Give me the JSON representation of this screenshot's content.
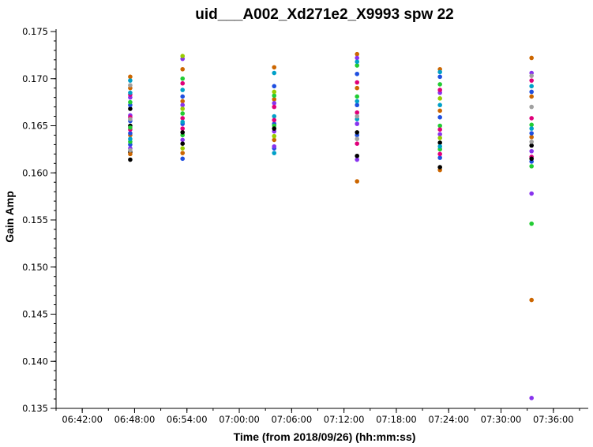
{
  "chart_data": {
    "type": "scatter",
    "title": "uid___A002_Xd271e2_X9993 spw 22",
    "xlabel": "Time (from 2018/09/26) (hh:mm:ss)",
    "ylabel": "Gain Amp",
    "xlim": [
      "06:39:00",
      "07:40:00"
    ],
    "ylim": [
      0.135,
      0.175
    ],
    "x_ticks": [
      "06:42:00",
      "06:48:00",
      "06:54:00",
      "07:00:00",
      "07:06:00",
      "07:12:00",
      "07:18:00",
      "07:24:00",
      "07:30:00",
      "07:36:00"
    ],
    "y_ticks": [
      "0.135",
      "0.140",
      "0.145",
      "0.150",
      "0.155",
      "0.160",
      "0.165",
      "0.170",
      "0.175"
    ],
    "grid": false,
    "series": [
      {
        "x": "06:47:30",
        "color": "#000000",
        "values": [
          0.1614,
          0.1622,
          0.165,
          0.1668
        ]
      },
      {
        "x": "06:47:30",
        "color": "#cc6600",
        "values": [
          0.1702,
          0.169,
          0.164,
          0.162
        ]
      },
      {
        "x": "06:47:30",
        "color": "#1f4fe0",
        "values": [
          0.1672,
          0.1655,
          0.1642,
          0.163
        ]
      },
      {
        "x": "06:47:30",
        "color": "#8833ee",
        "values": [
          0.168,
          0.1661,
          0.1626
        ]
      },
      {
        "x": "06:47:30",
        "color": "#e0007a",
        "values": [
          0.1683,
          0.1659,
          0.1646
        ]
      },
      {
        "x": "06:47:30",
        "color": "#22cc33",
        "values": [
          0.1675,
          0.1648,
          0.1633
        ]
      },
      {
        "x": "06:47:30",
        "color": "#00a0c8",
        "values": [
          0.1698,
          0.1685,
          0.1636
        ]
      },
      {
        "x": "06:47:30",
        "color": "#a0a0a0",
        "values": [
          0.1693,
          0.1657,
          0.1624
        ]
      },
      {
        "x": "06:53:30",
        "color": "#1f4fe0",
        "values": [
          0.1615,
          0.1652,
          0.1681
        ]
      },
      {
        "x": "06:53:30",
        "color": "#cc6600",
        "values": [
          0.171,
          0.1676,
          0.1621
        ]
      },
      {
        "x": "06:53:30",
        "color": "#8833ee",
        "values": [
          0.1721,
          0.1672,
          0.1635
        ]
      },
      {
        "x": "06:53:30",
        "color": "#22cc33",
        "values": [
          0.17,
          0.1663,
          0.164
        ]
      },
      {
        "x": "06:53:30",
        "color": "#e0007a",
        "values": [
          0.1695,
          0.1658,
          0.1647
        ]
      },
      {
        "x": "06:53:30",
        "color": "#000000",
        "values": [
          0.1643,
          0.1631
        ]
      },
      {
        "x": "06:53:30",
        "color": "#99cc00",
        "values": [
          0.1724,
          0.1668,
          0.1626
        ]
      },
      {
        "x": "06:53:30",
        "color": "#00a0c8",
        "values": [
          0.1688,
          0.1654
        ]
      },
      {
        "x": "07:04:00",
        "color": "#cc6600",
        "values": [
          0.1712,
          0.1678,
          0.1635
        ]
      },
      {
        "x": "07:04:00",
        "color": "#00a0c8",
        "values": [
          0.1706,
          0.166,
          0.1621
        ]
      },
      {
        "x": "07:04:00",
        "color": "#1f4fe0",
        "values": [
          0.1692,
          0.1652,
          0.1626
        ]
      },
      {
        "x": "07:04:00",
        "color": "#22cc33",
        "values": [
          0.1682,
          0.165
        ]
      },
      {
        "x": "07:04:00",
        "color": "#8833ee",
        "values": [
          0.1674,
          0.1644,
          0.1628
        ]
      },
      {
        "x": "07:04:00",
        "color": "#e0007a",
        "values": [
          0.167,
          0.1656
        ]
      },
      {
        "x": "07:04:00",
        "color": "#99cc00",
        "values": [
          0.1686,
          0.1639
        ]
      },
      {
        "x": "07:04:00",
        "color": "#000000",
        "values": [
          0.1647
        ]
      },
      {
        "x": "07:13:30",
        "color": "#cc6600",
        "values": [
          0.1726,
          0.169,
          0.1591
        ]
      },
      {
        "x": "07:13:30",
        "color": "#1f4fe0",
        "values": [
          0.1705,
          0.1672,
          0.164
        ]
      },
      {
        "x": "07:13:30",
        "color": "#8833ee",
        "values": [
          0.1722,
          0.1614,
          0.1652
        ]
      },
      {
        "x": "07:13:30",
        "color": "#000000",
        "values": [
          0.1618,
          0.1643
        ]
      },
      {
        "x": "07:13:30",
        "color": "#e0007a",
        "values": [
          0.1696,
          0.1664,
          0.1631
        ]
      },
      {
        "x": "07:13:30",
        "color": "#22cc33",
        "values": [
          0.1714,
          0.1681
        ]
      },
      {
        "x": "07:13:30",
        "color": "#00a0c8",
        "values": [
          0.1718,
          0.1676,
          0.1657
        ]
      },
      {
        "x": "07:13:30",
        "color": "#a0a0a0",
        "values": [
          0.166,
          0.1636
        ]
      },
      {
        "x": "07:23:00",
        "color": "#cc6600",
        "values": [
          0.171,
          0.1666,
          0.1603
        ]
      },
      {
        "x": "07:23:00",
        "color": "#1f4fe0",
        "values": [
          0.1702,
          0.1659,
          0.1616
        ]
      },
      {
        "x": "07:23:00",
        "color": "#000000",
        "values": [
          0.1606,
          0.1632
        ]
      },
      {
        "x": "07:23:00",
        "color": "#22cc33",
        "values": [
          0.1694,
          0.165,
          0.1625
        ]
      },
      {
        "x": "07:23:00",
        "color": "#8833ee",
        "values": [
          0.1685,
          0.1641
        ]
      },
      {
        "x": "07:23:00",
        "color": "#e0007a",
        "values": [
          0.1688,
          0.1646,
          0.162
        ]
      },
      {
        "x": "07:23:00",
        "color": "#00a0c8",
        "values": [
          0.1707,
          0.1672,
          0.1628
        ]
      },
      {
        "x": "07:23:00",
        "color": "#99cc00",
        "values": [
          0.1679,
          0.1637
        ]
      },
      {
        "x": "07:33:30",
        "color": "#8833ee",
        "values": [
          0.1361,
          0.1578,
          0.1623,
          0.1706
        ]
      },
      {
        "x": "07:33:30",
        "color": "#22cc33",
        "values": [
          0.1546,
          0.1607,
          0.1651
        ]
      },
      {
        "x": "07:33:30",
        "color": "#cc6600",
        "values": [
          0.1465,
          0.1722,
          0.1681,
          0.1638
        ]
      },
      {
        "x": "07:33:30",
        "color": "#1f4fe0",
        "values": [
          0.1642,
          0.1686,
          0.1612
        ]
      },
      {
        "x": "07:33:30",
        "color": "#e0007a",
        "values": [
          0.1698,
          0.1658,
          0.1617
        ]
      },
      {
        "x": "07:33:30",
        "color": "#000000",
        "values": [
          0.1615,
          0.1629
        ]
      },
      {
        "x": "07:33:30",
        "color": "#00a0c8",
        "values": [
          0.1692,
          0.1647
        ]
      },
      {
        "x": "07:33:30",
        "color": "#a0a0a0",
        "values": [
          0.1703,
          0.167,
          0.1633
        ]
      }
    ]
  }
}
